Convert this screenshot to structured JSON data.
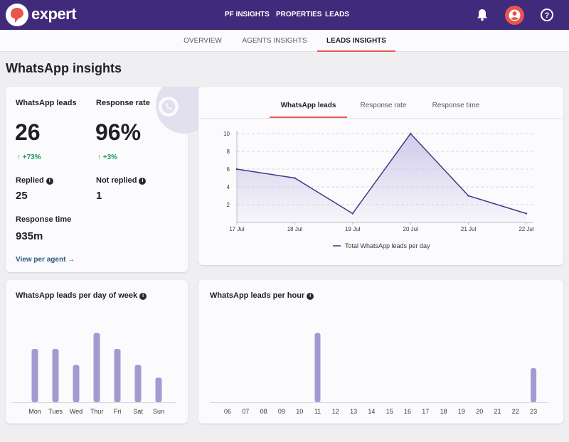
{
  "header": {
    "brand": "expert",
    "nav": [
      "PF INSIGHTS",
      "PROPERTIES",
      "LEADS"
    ],
    "icons": [
      "bell-icon",
      "user-icon",
      "help-icon"
    ]
  },
  "subtabs": [
    "OVERVIEW",
    "AGENTS INSIGHTS",
    "LEADS INSIGHTS"
  ],
  "active_subtab": "LEADS INSIGHTS",
  "page_title": "WhatsApp insights",
  "summary": {
    "leads_label": "WhatsApp leads",
    "leads_value": "26",
    "leads_trend": "+73%",
    "rate_label": "Response rate",
    "rate_value": "96%",
    "rate_trend": "+3%",
    "replied_label": "Replied",
    "replied_value": "25",
    "not_replied_label": "Not replied",
    "not_replied_value": "1",
    "response_time_label": "Response time",
    "response_time_value": "935m",
    "view_link": "View per agent"
  },
  "chart_tabs": [
    "WhatsApp leads",
    "Response rate",
    "Response time"
  ],
  "active_chart_tab": "WhatsApp leads",
  "colors": {
    "brand": "#3f2a7c",
    "accent": "#e8554e",
    "positive": "#1b9a5a",
    "series": "#3c3a84",
    "bars": "#a29bd2"
  },
  "chart_data": [
    {
      "type": "area",
      "title": "Total WhatsApp leads per day",
      "legend": "Total WhatsApp leads per day",
      "legend_position": "bottom",
      "x": [
        "17 Jul",
        "18 Jul",
        "19 Jul",
        "20 Jul",
        "21 Jul",
        "22 Jul"
      ],
      "values": [
        6,
        5,
        1,
        10,
        3,
        1
      ],
      "yticks": [
        2,
        4,
        6,
        8,
        10
      ],
      "ylim": [
        0,
        10
      ],
      "grid": true
    },
    {
      "type": "bar",
      "title": "WhatsApp leads per day of week",
      "categories": [
        "Mon",
        "Tues",
        "Wed",
        "Thur",
        "Fri",
        "Sat",
        "Sun"
      ],
      "values": [
        5,
        5,
        3.5,
        6.5,
        5,
        3.5,
        2.3
      ]
    },
    {
      "type": "bar",
      "title": "WhatsApp leads per hour",
      "categories": [
        "06",
        "07",
        "08",
        "09",
        "10",
        "11",
        "12",
        "13",
        "14",
        "15",
        "16",
        "17",
        "18",
        "19",
        "20",
        "21",
        "22",
        "23"
      ],
      "values": [
        0,
        0,
        0,
        0,
        0,
        6.5,
        0,
        0,
        0,
        0,
        0,
        0,
        0,
        0,
        0,
        0,
        0,
        3.2
      ]
    }
  ]
}
